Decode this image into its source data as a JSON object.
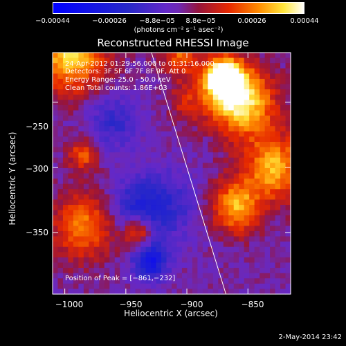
{
  "colorbar": {
    "ticks": [
      "−0.00044",
      "−0.00026",
      "−8.8e−05",
      "8.8e−05",
      "0.00026",
      "0.00044"
    ],
    "unit_label": "(photons cm⁻² s⁻¹ asec⁻²)",
    "range": [
      -0.00044,
      0.00044
    ]
  },
  "chart_data": {
    "type": "heatmap",
    "title": "Reconstructed RHESSI Image",
    "xlabel": "Heliocentric X (arcsec)",
    "ylabel": "Heliocentric Y (arcsec)",
    "xlim": [
      -1010,
      -815
    ],
    "ylim": [
      -397,
      -212
    ],
    "x_ticks": [
      "−1000",
      "−950",
      "−900",
      "−850"
    ],
    "y_ticks": [
      "−250",
      "−300",
      "−350"
    ],
    "x_tick_values": [
      -1000,
      -950,
      -900,
      -850
    ],
    "y_tick_values": [
      -250,
      -300,
      -350
    ],
    "limb_line": [
      [
        -929,
        -212
      ],
      [
        -868,
        -397
      ]
    ],
    "peak": [
      -861,
      -232
    ]
  },
  "info": {
    "time_range": "24-Apr-2012 01:29:56.000 to 01:31:16.000",
    "detectors": "Detectors: 3F 5F 6F 7F 8F 9F, Att 0",
    "energy": "Energy Range: 25.0 - 50.0 keV",
    "method": "Clean    Total counts: 1.86E+03",
    "peak": "Position of Peak = [−861,−232]"
  },
  "timestamp": "2-May-2014 23:42"
}
